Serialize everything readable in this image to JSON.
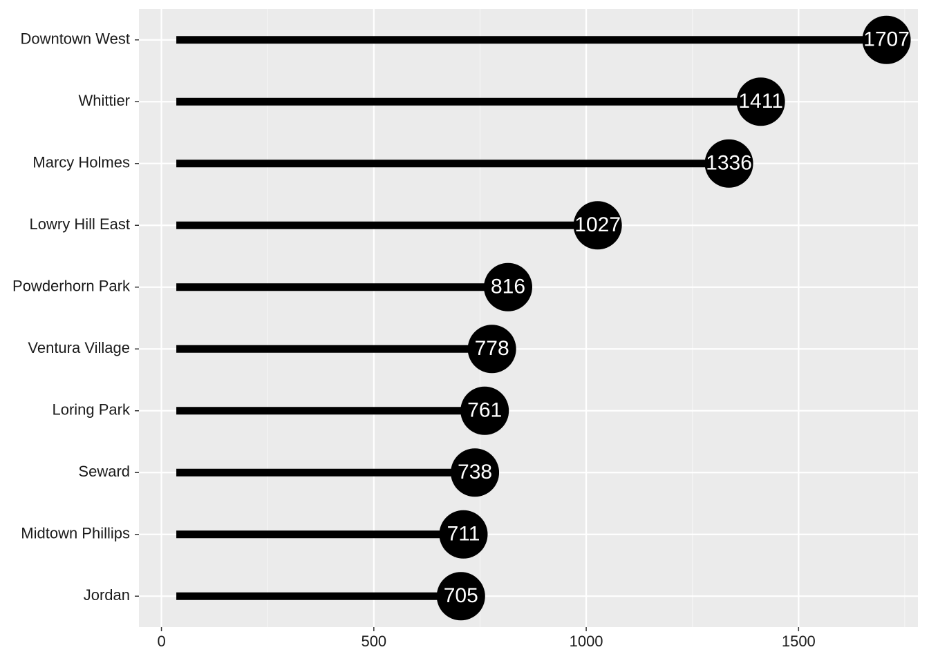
{
  "chart_data": {
    "type": "lollipop",
    "orientation": "horizontal",
    "title": "",
    "xlabel": "",
    "ylabel": "",
    "categories": [
      "Downtown West",
      "Whittier",
      "Marcy Holmes",
      "Lowry Hill East",
      "Powderhorn Park",
      "Ventura Village",
      "Loring Park",
      "Seward",
      "Midtown Phillips",
      "Jordan"
    ],
    "values": [
      1707,
      1411,
      1336,
      1027,
      816,
      778,
      761,
      738,
      711,
      705
    ],
    "value_labels": [
      "1707",
      "1411",
      "1336",
      "1027",
      "816",
      "778",
      "761",
      "738",
      "711",
      "705"
    ],
    "segment_start": 35,
    "xlim": [
      -53,
      1781
    ],
    "x_ticks": [
      0,
      500,
      1000,
      1500
    ],
    "x_tick_labels": [
      "0",
      "500",
      "1000",
      "1500"
    ],
    "grid": true,
    "legend": "none",
    "colors": {
      "panel_background": "#ebebeb",
      "grid_major": "#ffffff",
      "grid_minor": "#f5f5f5",
      "segment": "#000000",
      "point": "#000000",
      "label_text": "#ffffff"
    }
  }
}
